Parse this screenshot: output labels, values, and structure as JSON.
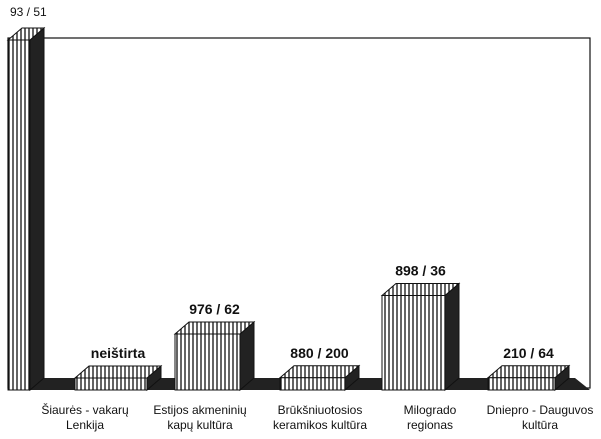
{
  "chart_data": {
    "type": "bar3d",
    "categories": [
      null,
      "Šiaurės - vakarų\nLenkija",
      "Estijos akmeninių\nkapų kultūra",
      "Brūkšniuotosios\nkeramikos kultūra",
      "Milogrado\nregionas",
      "Dniepro - Dauguvos\nkultūra"
    ],
    "values": [
      100,
      0,
      16,
      3.5,
      27,
      3.5
    ],
    "bar_labels": [
      "93 / 51",
      "neištirta",
      "976 / 62",
      "880 / 200",
      "898 / 36",
      "210 / 64"
    ],
    "ylim": [
      0,
      100
    ]
  }
}
